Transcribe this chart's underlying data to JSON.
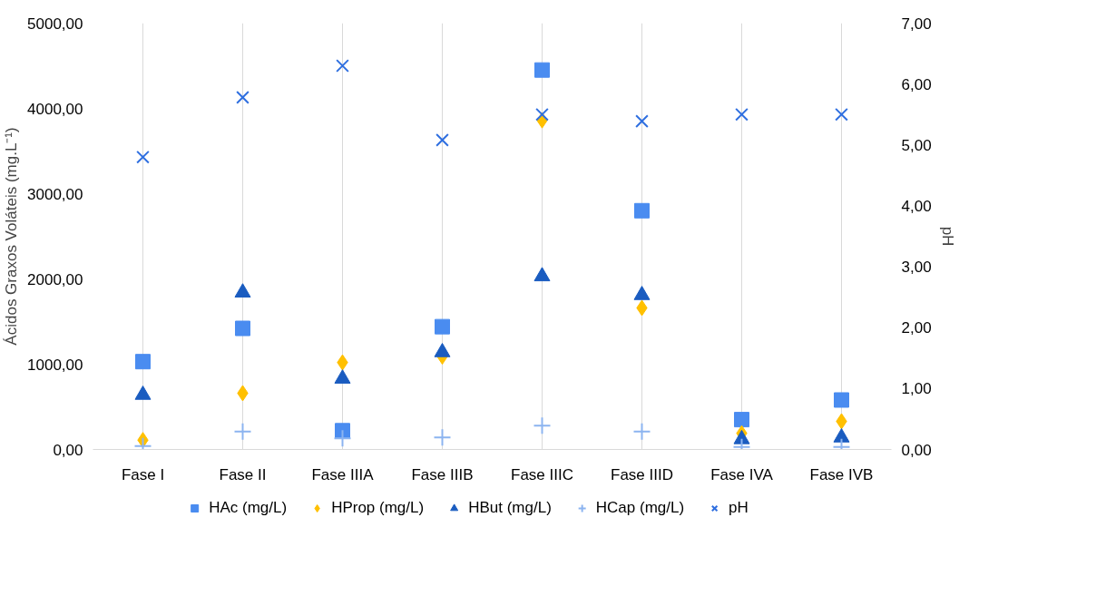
{
  "chart_data": {
    "type": "scatter",
    "ylabel": "Ácidos Graxos Voláteis (mg.L⁻¹)",
    "y2label": "pH",
    "categories": [
      "Fase I",
      "Fase II",
      "Fase IIIA",
      "Fase IIIB",
      "Fase IIIC",
      "Fase IIID",
      "Fase IVA",
      "Fase IVB"
    ],
    "series": [
      {
        "name": "HAc (mg/L)",
        "color": "#4a8cf0",
        "marker": "square",
        "values": [
          1030,
          1420,
          220,
          1440,
          4450,
          2800,
          350,
          580
        ]
      },
      {
        "name": "HProp (mg/L)",
        "color": "#ffc000",
        "marker": "diamond",
        "values": [
          110,
          660,
          1020,
          1090,
          3860,
          1660,
          190,
          330
        ]
      },
      {
        "name": "HBut (mg/L)",
        "color": "#1a5cc0",
        "marker": "triangle",
        "values": [
          640,
          1840,
          830,
          1140,
          2030,
          1810,
          120,
          140
        ]
      },
      {
        "name": "HCap (mg/L)",
        "color": "#8cb4f0",
        "marker": "cross",
        "values": [
          40,
          210,
          130,
          140,
          280,
          210,
          30,
          30
        ]
      },
      {
        "name": "pH",
        "color": "#2f6fe0",
        "marker": "x",
        "axis": "y2",
        "values": [
          4.8,
          5.78,
          6.3,
          5.08,
          5.5,
          5.39,
          5.5,
          5.5
        ]
      }
    ],
    "ylim": [
      0,
      5000
    ],
    "yticks": [
      {
        "value": 0,
        "label": "0,00"
      },
      {
        "value": 1000,
        "label": "1000,00"
      },
      {
        "value": 2000,
        "label": "2000,00"
      },
      {
        "value": 3000,
        "label": "3000,00"
      },
      {
        "value": 4000,
        "label": "4000,00"
      },
      {
        "value": 5000,
        "label": "5000,00"
      }
    ],
    "y2lim": [
      0,
      7
    ],
    "y2ticks": [
      {
        "value": 0,
        "label": "0,00"
      },
      {
        "value": 1,
        "label": "1,00"
      },
      {
        "value": 2,
        "label": "2,00"
      },
      {
        "value": 3,
        "label": "3,00"
      },
      {
        "value": 4,
        "label": "4,00"
      },
      {
        "value": 5,
        "label": "5,00"
      },
      {
        "value": 6,
        "label": "6,00"
      },
      {
        "value": 7,
        "label": "7,00"
      }
    ],
    "grid": "x",
    "legend": "bottom"
  }
}
